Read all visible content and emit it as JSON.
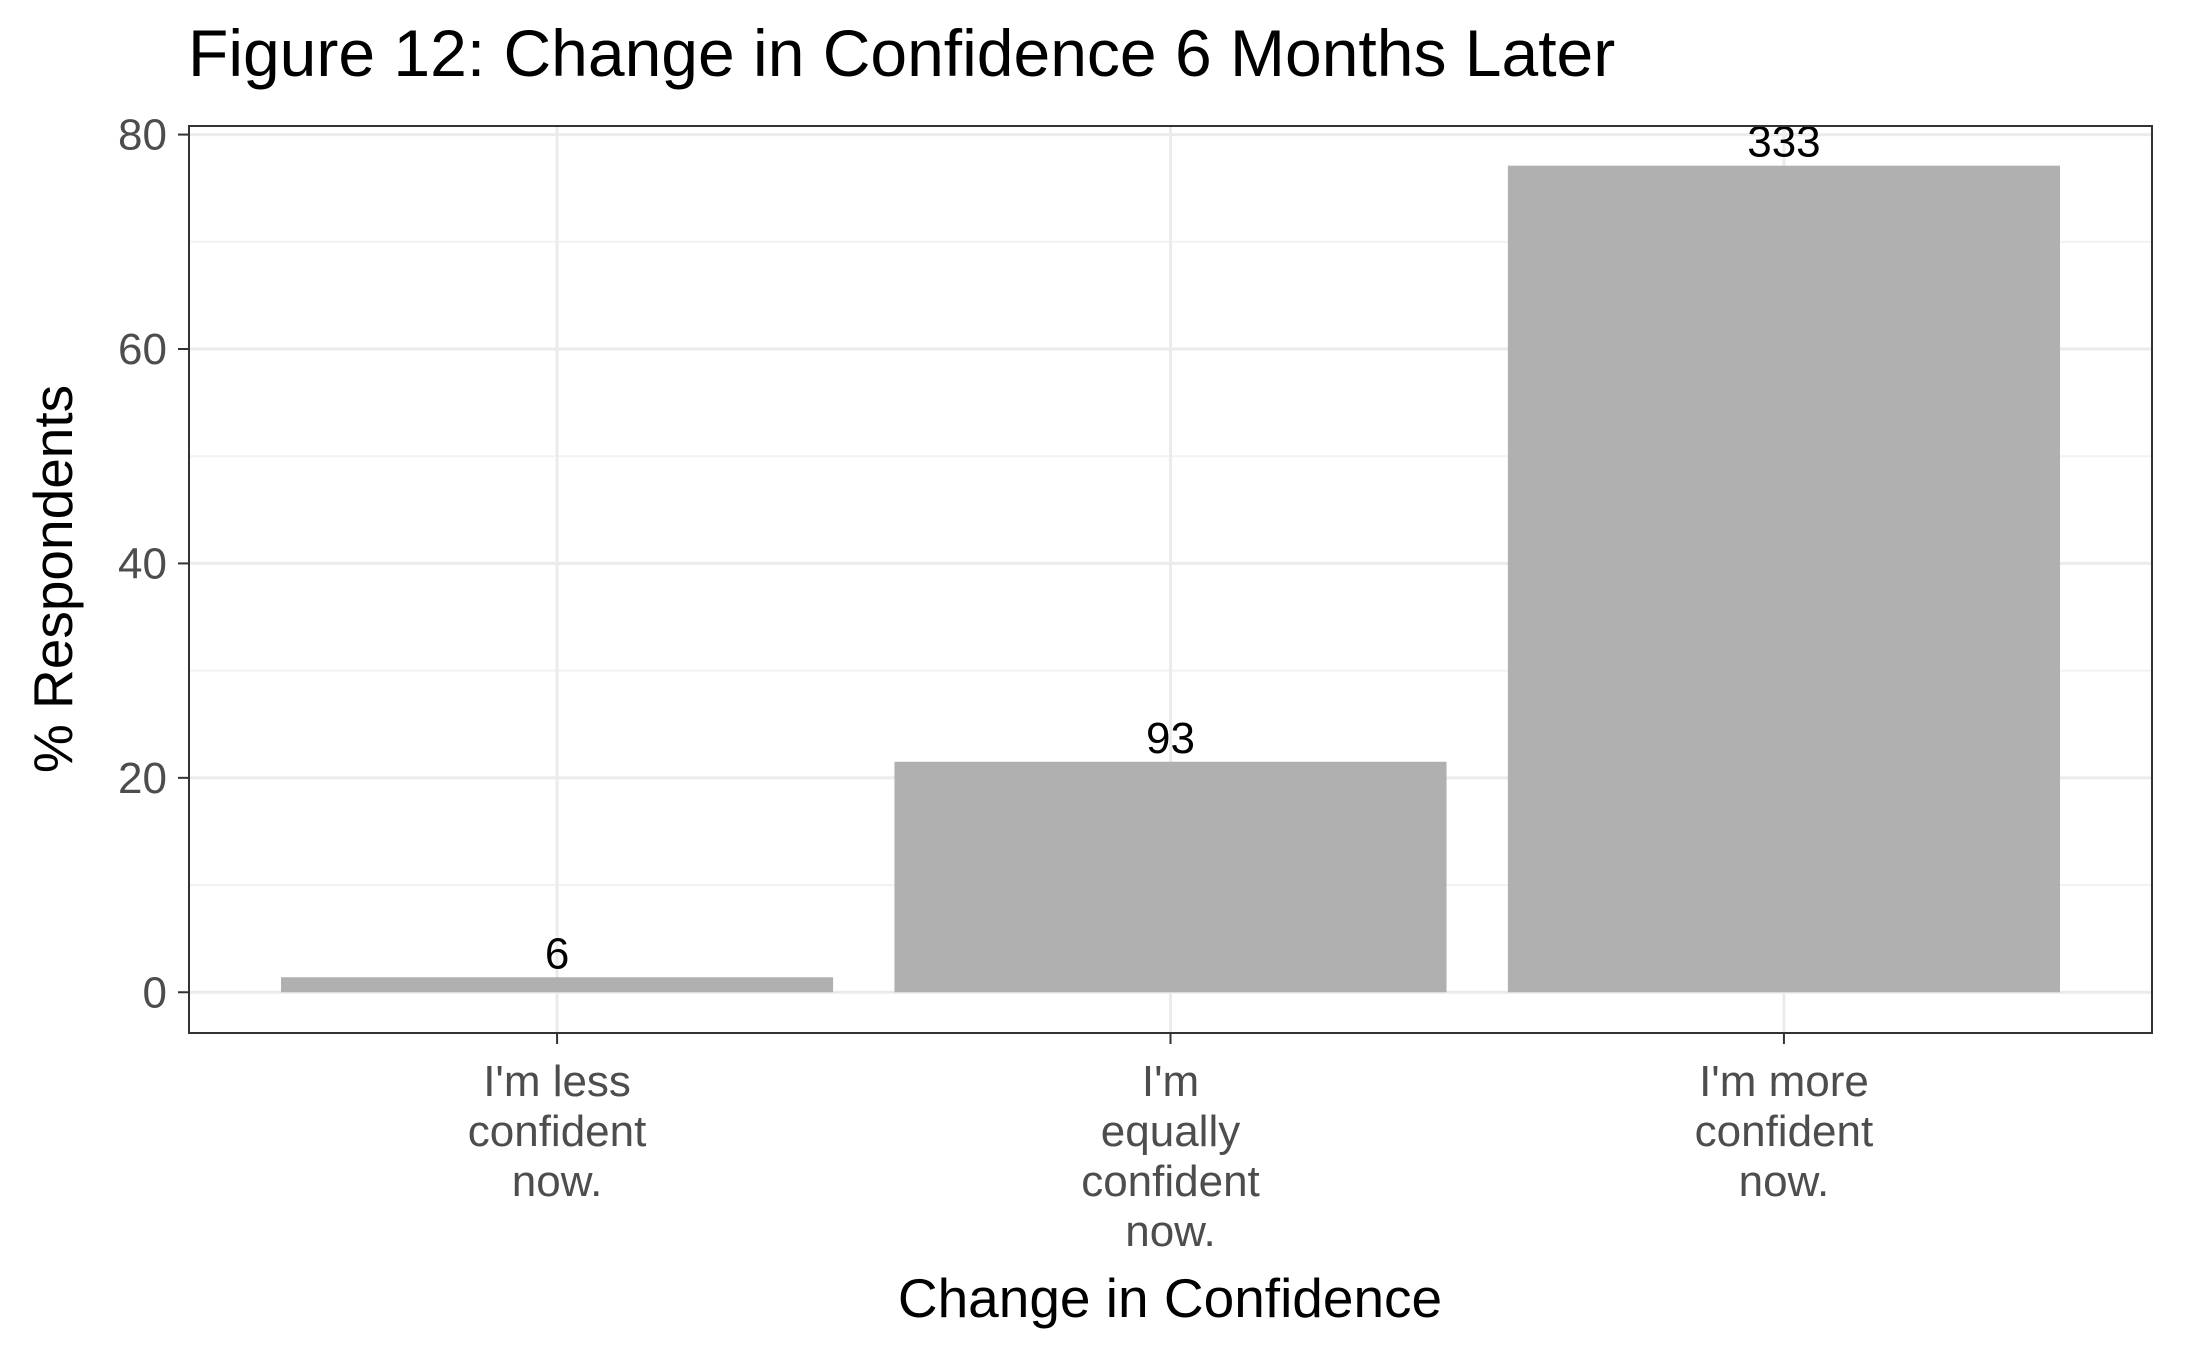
{
  "chart_data": {
    "type": "bar",
    "title": "Figure 12: Change in Confidence 6 Months Later",
    "xlabel": "Change in Confidence",
    "ylabel": "% Respondents",
    "categories": [
      [
        "I'm less",
        "confident",
        "now."
      ],
      [
        "I'm",
        "equally",
        "confident",
        "now."
      ],
      [
        "I'm more",
        "confident",
        "now."
      ]
    ],
    "values": [
      1.4,
      21.5,
      77.1
    ],
    "data_labels": [
      "6",
      "93",
      "333"
    ],
    "ylim": [
      -3.8,
      80.8
    ],
    "yticks": [
      0,
      20,
      40,
      60,
      80
    ],
    "yticks_minor": [
      10,
      30,
      50,
      70
    ],
    "grid": true,
    "colors": {
      "bar": "#b0b0b0",
      "grid_major": "#ebebeb",
      "grid_minor": "#f2f2f2",
      "panel_border": "#333333"
    }
  }
}
